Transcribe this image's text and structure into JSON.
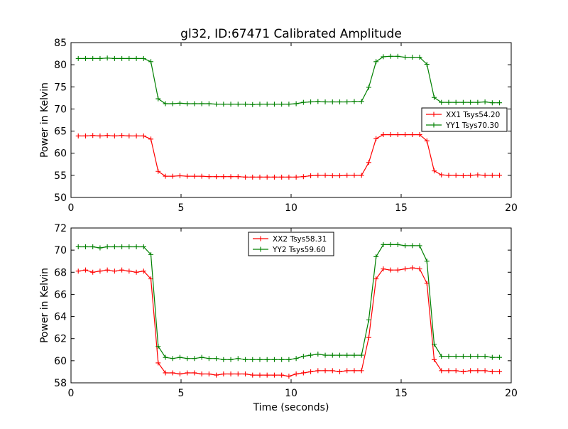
{
  "figure": {
    "title": "gl32, ID:67471 Calibrated Amplitude",
    "xlabel": "Time (seconds)"
  },
  "chart_data": [
    {
      "type": "line",
      "title": "gl32, ID:67471 Calibrated Amplitude",
      "xlabel": "",
      "ylabel": "Power in Kelvin",
      "xlim": [
        0,
        20
      ],
      "ylim": [
        50,
        85
      ],
      "xticks": [
        0,
        5,
        10,
        15,
        20
      ],
      "yticks": [
        50,
        55,
        60,
        65,
        70,
        75,
        80,
        85
      ],
      "grid": false,
      "legend_position": "right",
      "x": [
        0.33,
        0.66,
        0.99,
        1.32,
        1.65,
        1.98,
        2.31,
        2.64,
        2.97,
        3.3,
        3.63,
        3.96,
        4.29,
        4.62,
        4.95,
        5.28,
        5.61,
        5.94,
        6.27,
        6.6,
        6.93,
        7.26,
        7.59,
        7.92,
        8.25,
        8.58,
        8.91,
        9.24,
        9.57,
        9.9,
        10.23,
        10.56,
        10.89,
        11.22,
        11.55,
        11.88,
        12.21,
        12.54,
        12.87,
        13.2,
        13.53,
        13.86,
        14.19,
        14.52,
        14.85,
        15.18,
        15.51,
        15.84,
        16.17,
        16.5,
        16.83,
        17.16,
        17.49,
        17.82,
        18.15,
        18.48,
        18.81,
        19.14,
        19.47
      ],
      "series": [
        {
          "name": "XX1 Tsys54.20",
          "color": "#ff0000",
          "values": [
            63.9,
            63.9,
            64.0,
            63.9,
            64.0,
            63.9,
            64.0,
            63.9,
            63.9,
            63.9,
            63.2,
            55.9,
            54.8,
            54.8,
            54.9,
            54.8,
            54.8,
            54.8,
            54.7,
            54.7,
            54.7,
            54.7,
            54.7,
            54.6,
            54.6,
            54.6,
            54.6,
            54.6,
            54.6,
            54.6,
            54.6,
            54.7,
            54.9,
            55.0,
            55.0,
            54.9,
            54.9,
            55.0,
            55.0,
            55.0,
            57.9,
            63.3,
            64.2,
            64.2,
            64.2,
            64.2,
            64.2,
            64.2,
            62.8,
            56.0,
            55.1,
            55.0,
            55.0,
            54.9,
            55.0,
            55.1,
            55.0,
            55.0,
            55.0
          ]
        },
        {
          "name": "YY1 Tsys70.30",
          "color": "#008000",
          "values": [
            81.4,
            81.4,
            81.4,
            81.4,
            81.5,
            81.4,
            81.4,
            81.4,
            81.4,
            81.4,
            80.7,
            72.3,
            71.2,
            71.2,
            71.3,
            71.2,
            71.2,
            71.2,
            71.2,
            71.1,
            71.1,
            71.1,
            71.1,
            71.1,
            71.0,
            71.1,
            71.1,
            71.1,
            71.1,
            71.1,
            71.2,
            71.5,
            71.6,
            71.7,
            71.6,
            71.6,
            71.6,
            71.6,
            71.7,
            71.7,
            74.9,
            80.7,
            81.8,
            81.9,
            81.9,
            81.7,
            81.7,
            81.7,
            80.1,
            72.6,
            71.5,
            71.5,
            71.5,
            71.5,
            71.5,
            71.5,
            71.6,
            71.4,
            71.4
          ]
        }
      ]
    },
    {
      "type": "line",
      "title": "",
      "xlabel": "Time (seconds)",
      "ylabel": "Power in Kelvin",
      "xlim": [
        0,
        20
      ],
      "ylim": [
        58,
        72
      ],
      "xticks": [
        0,
        5,
        10,
        15,
        20
      ],
      "yticks": [
        58,
        60,
        62,
        64,
        66,
        68,
        70,
        72
      ],
      "grid": false,
      "legend_position": "top-center",
      "x": [
        0.33,
        0.66,
        0.99,
        1.32,
        1.65,
        1.98,
        2.31,
        2.64,
        2.97,
        3.3,
        3.63,
        3.96,
        4.29,
        4.62,
        4.95,
        5.28,
        5.61,
        5.94,
        6.27,
        6.6,
        6.93,
        7.26,
        7.59,
        7.92,
        8.25,
        8.58,
        8.91,
        9.24,
        9.57,
        9.9,
        10.23,
        10.56,
        10.89,
        11.22,
        11.55,
        11.88,
        12.21,
        12.54,
        12.87,
        13.2,
        13.53,
        13.86,
        14.19,
        14.52,
        14.85,
        15.18,
        15.51,
        15.84,
        16.17,
        16.5,
        16.83,
        17.16,
        17.49,
        17.82,
        18.15,
        18.48,
        18.81,
        19.14,
        19.47
      ],
      "series": [
        {
          "name": "XX2 Tsys58.31",
          "color": "#ff0000",
          "values": [
            68.1,
            68.2,
            68.0,
            68.1,
            68.2,
            68.1,
            68.2,
            68.1,
            68.0,
            68.1,
            67.4,
            59.8,
            58.9,
            58.9,
            58.8,
            58.9,
            58.9,
            58.8,
            58.8,
            58.7,
            58.8,
            58.8,
            58.8,
            58.8,
            58.7,
            58.7,
            58.7,
            58.7,
            58.7,
            58.6,
            58.8,
            58.9,
            59.0,
            59.1,
            59.1,
            59.1,
            59.0,
            59.1,
            59.1,
            59.1,
            62.1,
            67.4,
            68.3,
            68.2,
            68.2,
            68.3,
            68.4,
            68.3,
            67.0,
            60.1,
            59.1,
            59.1,
            59.1,
            59.0,
            59.1,
            59.1,
            59.1,
            59.0,
            59.0
          ]
        },
        {
          "name": "YY2 Tsys59.60",
          "color": "#008000",
          "values": [
            70.3,
            70.3,
            70.3,
            70.2,
            70.3,
            70.3,
            70.3,
            70.3,
            70.3,
            70.3,
            69.6,
            61.3,
            60.3,
            60.2,
            60.3,
            60.2,
            60.2,
            60.3,
            60.2,
            60.2,
            60.1,
            60.1,
            60.2,
            60.1,
            60.1,
            60.1,
            60.1,
            60.1,
            60.1,
            60.1,
            60.2,
            60.4,
            60.5,
            60.6,
            60.5,
            60.5,
            60.5,
            60.5,
            60.5,
            60.5,
            63.7,
            69.4,
            70.5,
            70.5,
            70.5,
            70.4,
            70.4,
            70.4,
            69.0,
            61.5,
            60.4,
            60.4,
            60.4,
            60.4,
            60.4,
            60.4,
            60.4,
            60.3,
            60.3
          ]
        }
      ]
    }
  ]
}
